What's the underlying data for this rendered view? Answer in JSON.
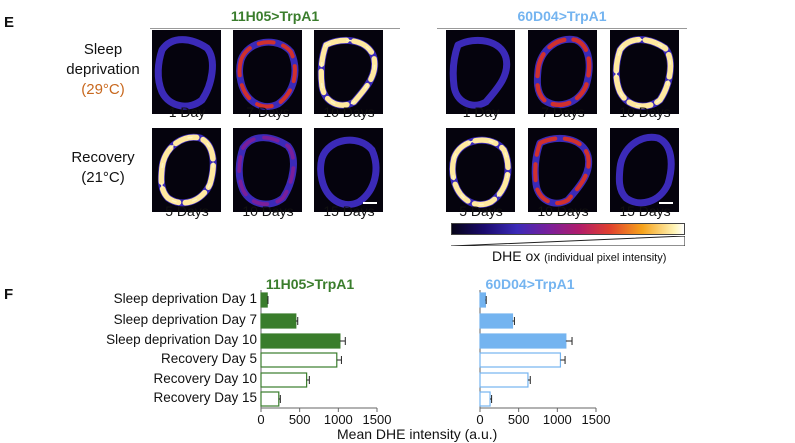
{
  "panel_e": {
    "letter": "E",
    "groups": [
      {
        "title": "11H05>TrpA1",
        "color": "#3a7d2c"
      },
      {
        "title": "60D04>TrpA1",
        "color": "#74b4f0"
      }
    ],
    "rows": [
      {
        "label_line1": "Sleep",
        "label_line2": "deprivation",
        "temp": "(29°C)",
        "temp_color": "#c8681e"
      },
      {
        "label_line1": "Recovery",
        "label_line2": "",
        "temp": "(21°C)",
        "temp_color": "#111111"
      }
    ],
    "captions": [
      [
        "1 Day",
        "7 Days",
        "10 Days"
      ],
      [
        "5 Days",
        "10 Days",
        "15 Days"
      ]
    ],
    "colorbar": {
      "label": "DHE ox",
      "sublabel": "(individual pixel intensity)"
    }
  },
  "panel_f": {
    "letter": "F",
    "categories": [
      "Sleep deprivation Day 1",
      "Sleep deprivation Day 7",
      "Sleep deprivation Day 10",
      "Recovery Day 5",
      "Recovery Day 10",
      "Recovery Day 15"
    ]
  },
  "chart_data": [
    {
      "type": "bar",
      "orientation": "horizontal",
      "title": "11H05>TrpA1",
      "color": "#3a7d2c",
      "categories": [
        "Sleep deprivation Day 1",
        "Sleep deprivation Day 7",
        "Sleep deprivation Day 10",
        "Recovery Day 5",
        "Recovery Day 10",
        "Recovery Day 15"
      ],
      "values": [
        80,
        450,
        1020,
        980,
        590,
        230
      ],
      "errors": [
        10,
        25,
        70,
        60,
        35,
        20
      ],
      "filled": [
        true,
        true,
        true,
        false,
        false,
        false
      ],
      "xlabel": "Mean DHE intensity (a.u.)",
      "xlim": [
        0,
        1500
      ],
      "xticks": [
        0,
        500,
        1000,
        1500
      ]
    },
    {
      "type": "bar",
      "orientation": "horizontal",
      "title": "60D04>TrpA1",
      "color": "#74b4f0",
      "categories": [
        "Sleep deprivation Day 1",
        "Sleep deprivation Day 7",
        "Sleep deprivation Day 10",
        "Recovery Day 5",
        "Recovery Day 10",
        "Recovery Day 15"
      ],
      "values": [
        70,
        420,
        1110,
        1040,
        620,
        130
      ],
      "errors": [
        10,
        25,
        80,
        60,
        30,
        20
      ],
      "filled": [
        true,
        true,
        true,
        false,
        false,
        false
      ],
      "xlabel": "",
      "xlim": [
        0,
        1500
      ],
      "xticks": [
        0,
        500,
        1000,
        1500
      ]
    }
  ]
}
